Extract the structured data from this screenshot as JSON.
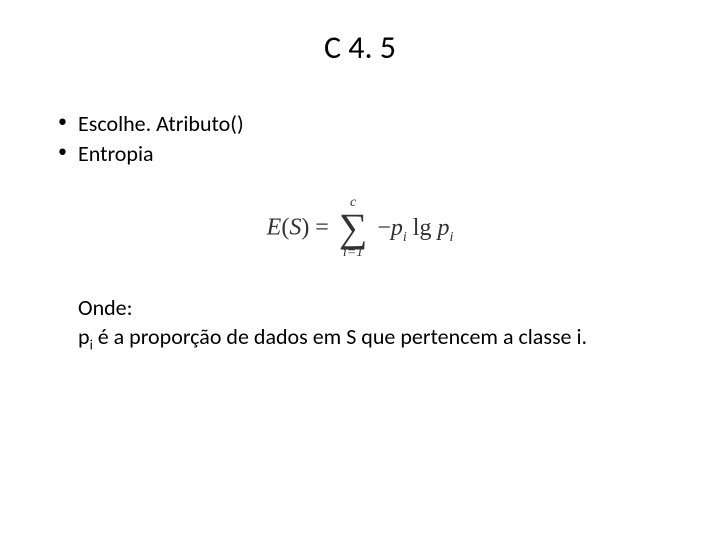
{
  "slide": {
    "title": "C 4. 5",
    "bullets": [
      "Escolhe. Atributo()",
      "Entropia"
    ],
    "formula": {
      "lhs_left": "E",
      "lhs_arg": "S",
      "sum_upper": "c",
      "sum_lower": "i=1",
      "minus": "−",
      "p": "p",
      "sub_i": "i",
      "lg": " lg ",
      "p2": "p",
      "sub_i2": "i"
    },
    "explain": {
      "onde": "Onde:",
      "line2_prefix": "p",
      "line2_sub": "i",
      "line2_rest": " é a proporção de dados em S que pertencem a classe i."
    }
  },
  "style": {
    "background_color": "#ffffff",
    "text_color": "#000000",
    "title_fontsize": 32,
    "body_fontsize": 22,
    "formula_fontsize": 24,
    "formula_color": "#333333"
  }
}
